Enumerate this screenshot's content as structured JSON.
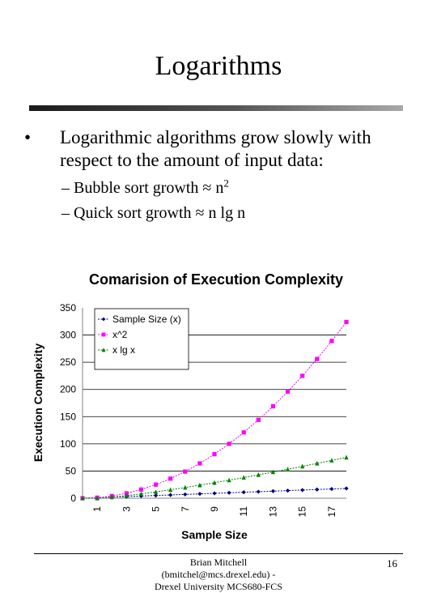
{
  "slide": {
    "title": "Logarithms",
    "bullet_marker": "•",
    "bullet_text": "Logarithmic algorithms grow slowly with respect to the amount of input data:",
    "sub_items": [
      {
        "marker": "–",
        "text": "Bubble sort growth ≈ n",
        "superscript": "2"
      },
      {
        "marker": "–",
        "text": "Quick sort growth ≈ n lg n",
        "superscript": ""
      }
    ]
  },
  "chart_data": {
    "type": "line",
    "title": "Comarision of Execution Complexity",
    "xlabel": "Sample Size",
    "ylabel": "Execution Complexity",
    "x": [
      0,
      1,
      2,
      3,
      4,
      5,
      6,
      7,
      8,
      9,
      10,
      11,
      12,
      13,
      14,
      15,
      16,
      17,
      18
    ],
    "x_tick_labels": [
      "1",
      "3",
      "5",
      "7",
      "9",
      "11",
      "13",
      "15",
      "17"
    ],
    "x_tick_positions": [
      1,
      3,
      5,
      7,
      9,
      11,
      13,
      15,
      17
    ],
    "xlim": [
      0,
      18
    ],
    "ylim": [
      0,
      350
    ],
    "y_ticks": [
      0,
      50,
      100,
      150,
      200,
      250,
      300,
      350
    ],
    "legend_position": "top-left",
    "series": [
      {
        "name": "Sample Size (x)",
        "color": "#000080",
        "marker": "diamond",
        "values": [
          0,
          1,
          2,
          3,
          4,
          5,
          6,
          7,
          8,
          9,
          10,
          11,
          12,
          13,
          14,
          15,
          16,
          17,
          18
        ]
      },
      {
        "name": "x^2",
        "color": "#ff00ff",
        "marker": "square",
        "values": [
          0,
          1,
          4,
          9,
          16,
          25,
          36,
          49,
          64,
          81,
          100,
          121,
          144,
          169,
          196,
          225,
          256,
          289,
          324
        ]
      },
      {
        "name": "x lg x",
        "color": "#008000",
        "marker": "triangle",
        "values": [
          0,
          0,
          2,
          4.75,
          8,
          11.6,
          15.5,
          19.65,
          24,
          28.5,
          33.2,
          38.05,
          43,
          48.1,
          53.3,
          58.6,
          64,
          69.5,
          75.05
        ]
      }
    ]
  },
  "footer": {
    "author_line1": "Brian Mitchell",
    "author_line2": "(bmitchel@mcs.drexel.edu) -",
    "author_line3": "Drexel University MCS680-FCS",
    "page_number": "16"
  },
  "colors": {
    "grid_line": "#000000",
    "plot_background": "#ffffff"
  }
}
